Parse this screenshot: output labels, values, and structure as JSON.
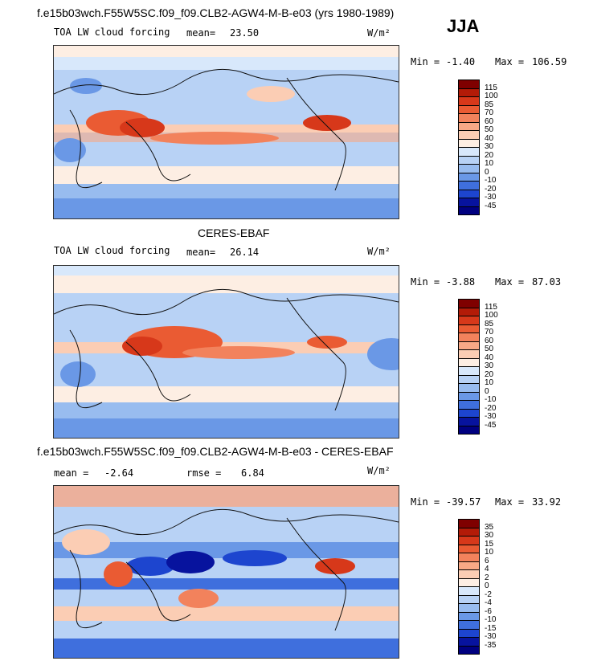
{
  "header": {
    "title_top": "f.e15b03wch.F55W5SC.f09_f09.CLB2-AGW4-M-B-e03 (yrs 1980-1989)",
    "season": "JJA"
  },
  "panel1": {
    "variable": "TOA LW cloud forcing",
    "mean_label": "mean=",
    "mean_value": "23.50",
    "units": "W/m²",
    "min_label": "Min =",
    "min_value": "-1.40",
    "max_label": "Max =",
    "max_value": "106.59",
    "levels": [
      "115",
      "100",
      "85",
      "70",
      "60",
      "50",
      "40",
      "30",
      "20",
      "10",
      "0",
      "-10",
      "-20",
      "-30",
      "-45"
    ]
  },
  "panel2": {
    "source_title": "CERES-EBAF",
    "variable": "TOA LW cloud forcing",
    "mean_label": "mean=",
    "mean_value": "26.14",
    "units": "W/m²",
    "min_label": "Min =",
    "min_value": "-3.88",
    "max_label": "Max =",
    "max_value": "87.03",
    "levels": [
      "115",
      "100",
      "85",
      "70",
      "60",
      "50",
      "40",
      "30",
      "20",
      "10",
      "0",
      "-10",
      "-20",
      "-30",
      "-45"
    ]
  },
  "panel3": {
    "diff_title": "f.e15b03wch.F55W5SC.f09_f09.CLB2-AGW4-M-B-e03 - CERES-EBAF",
    "mean_label": "mean =",
    "mean_value": "-2.64",
    "rmse_label": "rmse =",
    "rmse_value": "6.84",
    "units": "W/m²",
    "min_label": "Min =",
    "min_value": "-39.57",
    "max_label": "Max =",
    "max_value": "33.92",
    "levels": [
      "35",
      "30",
      "15",
      "10",
      "6",
      "4",
      "2",
      "0",
      "-2",
      "-4",
      "-6",
      "-10",
      "-15",
      "-30",
      "-35"
    ]
  },
  "colors": {
    "abs_scale": [
      "#7f0000",
      "#b31b08",
      "#d7381a",
      "#ea5b33",
      "#f2825c",
      "#f7a886",
      "#fbcdb4",
      "#fdeee3",
      "#d8e8fb",
      "#b8d2f5",
      "#98bcef",
      "#6a98e6",
      "#3f6fdd",
      "#1d45cf",
      "#07139e",
      "#000080"
    ],
    "diff_scale": [
      "#7f0000",
      "#b31b08",
      "#d7381a",
      "#ea5b33",
      "#f2825c",
      "#f7a886",
      "#fbcdb4",
      "#fdeee3",
      "#d8e8fb",
      "#b8d2f5",
      "#98bcef",
      "#6a98e6",
      "#3f6fdd",
      "#1d45cf",
      "#07139e",
      "#000080"
    ],
    "coastline": "#111111"
  }
}
